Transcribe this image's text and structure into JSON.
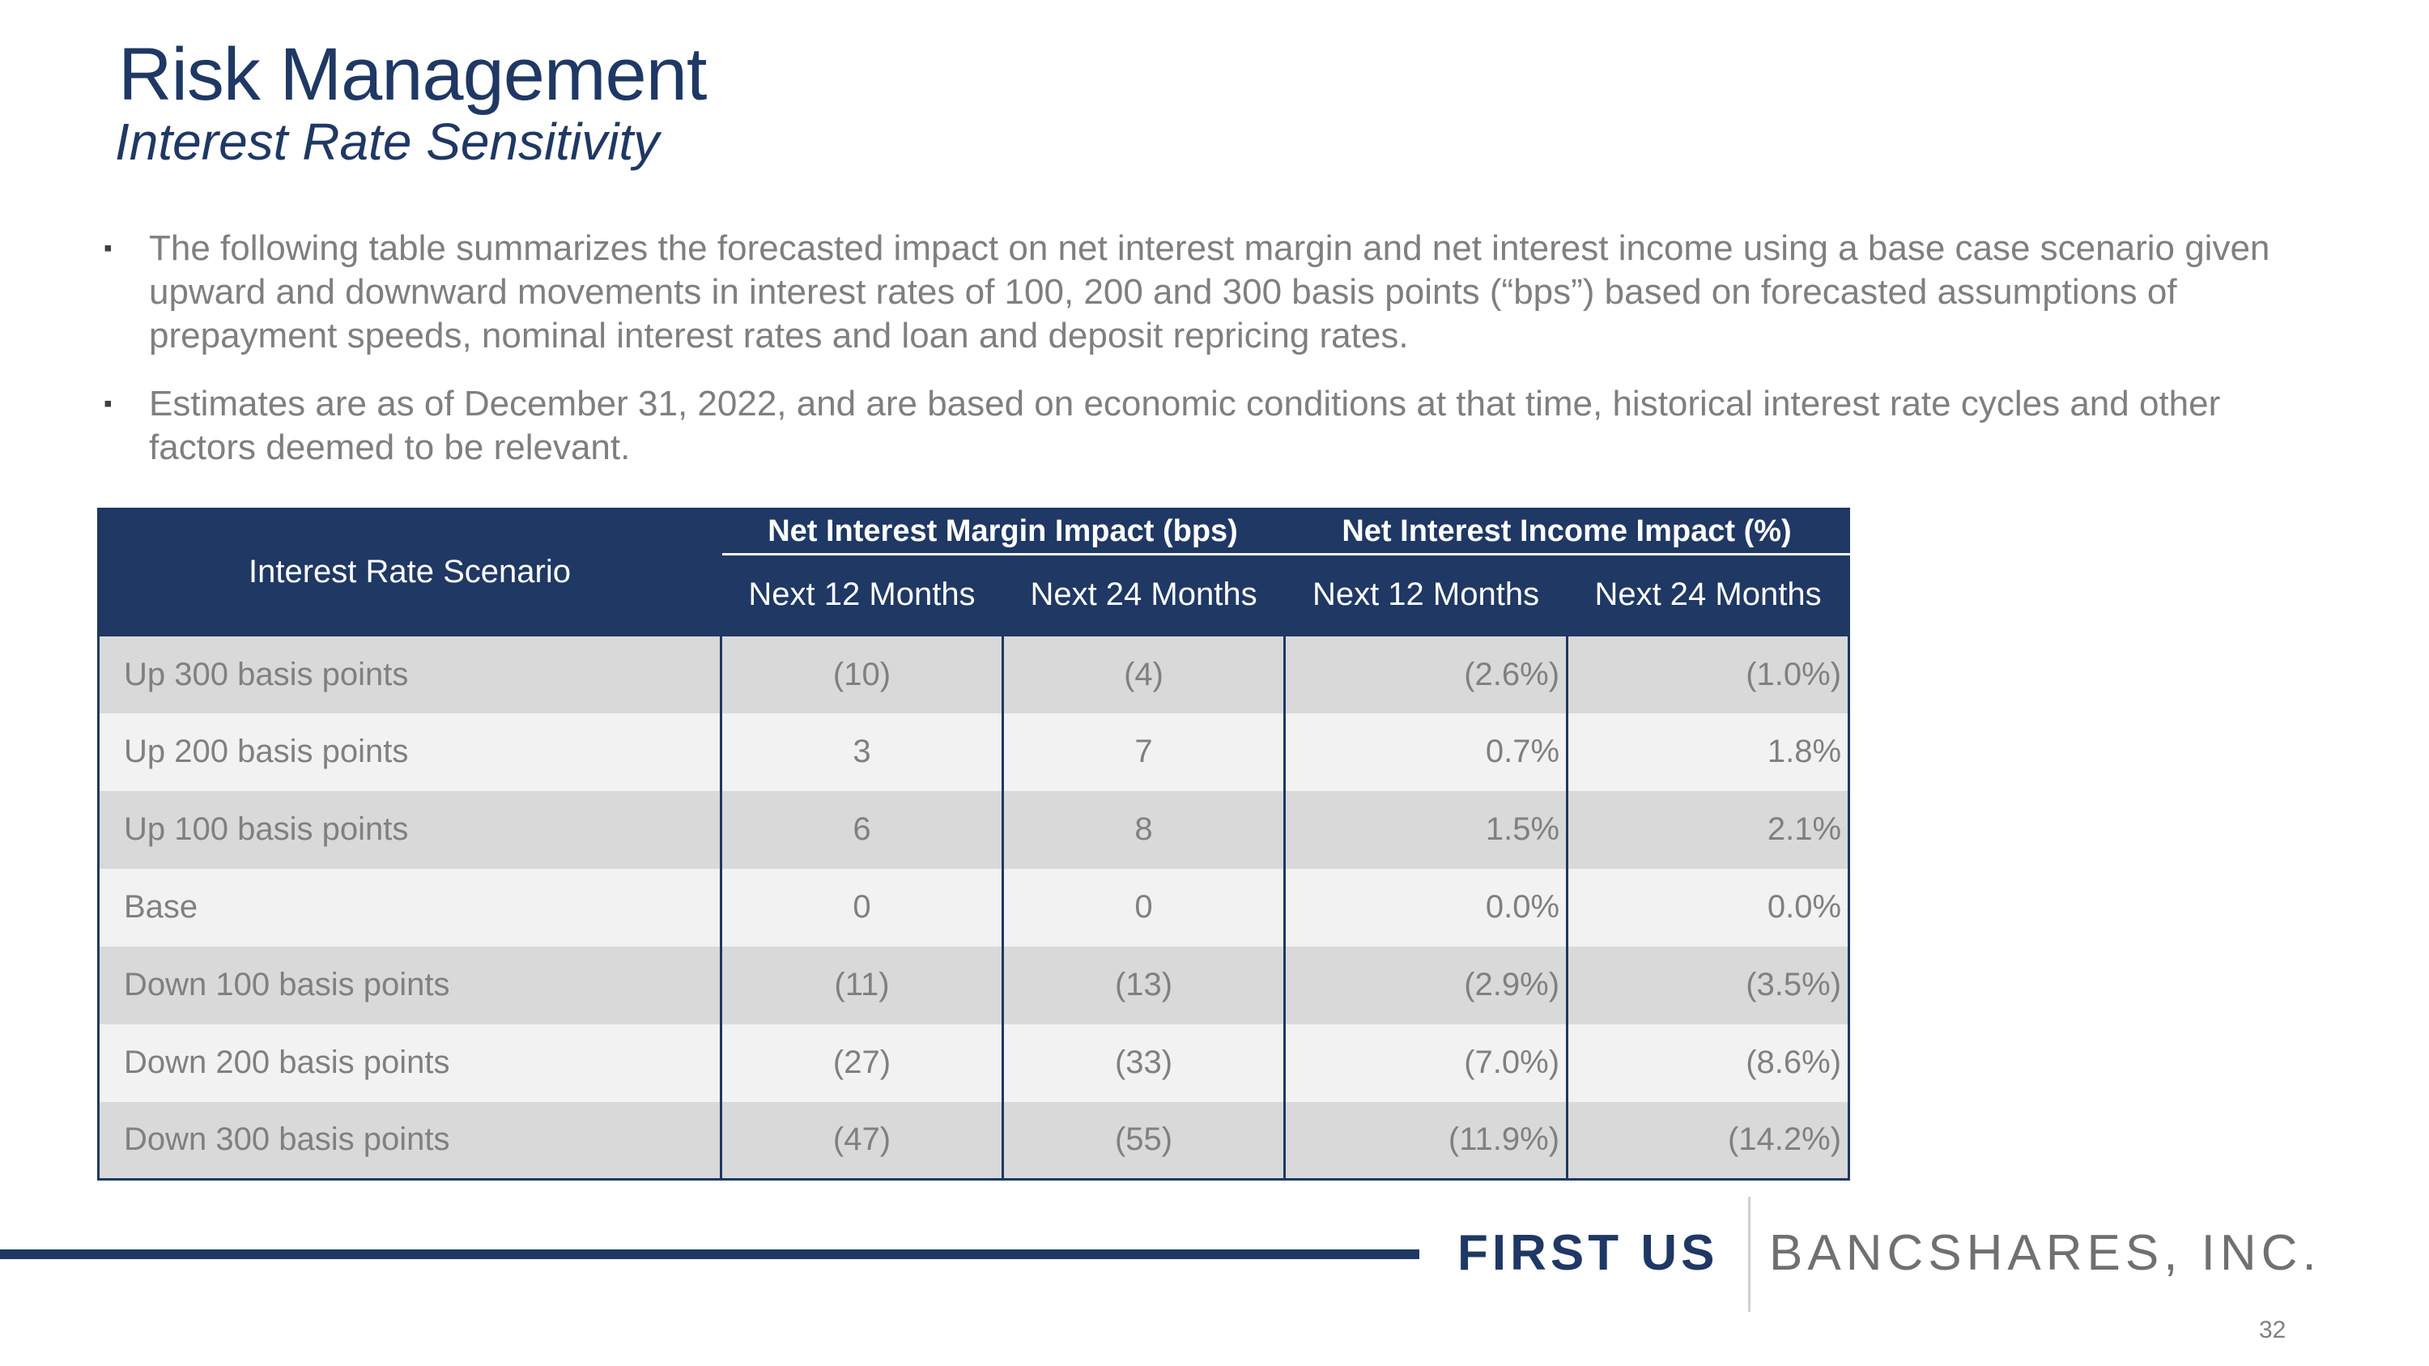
{
  "title": "Risk Management",
  "subtitle": "Interest Rate Sensitivity",
  "bullets": [
    "The following table summarizes the forecasted impact on net interest margin and net interest income using a base case scenario given upward and downward movements in interest rates of 100, 200 and 300 basis points (“bps”) based on forecasted assumptions of prepayment speeds, nominal interest rates and loan and deposit repricing rates.",
    "Estimates are as of December 31, 2022, and are based on economic conditions at that time, historical interest rate cycles and other factors deemed to be relevant."
  ],
  "bullet_mark": "▪",
  "table": {
    "scenario_header": "Interest Rate Scenario",
    "group_headers": [
      "Net Interest Margin Impact (bps)",
      "Net Interest Income Impact (%)"
    ],
    "sub_headers": [
      "Next 12 Months",
      "Next 24 Months",
      "Next 12 Months",
      "Next 24 Months"
    ],
    "rows": [
      [
        "Up 300 basis points",
        "(10)",
        "(4)",
        "(2.6%)",
        "(1.0%)"
      ],
      [
        "Up 200 basis points",
        "3",
        "7",
        "0.7%",
        "1.8%"
      ],
      [
        "Up 100 basis points",
        "6",
        "8",
        "1.5%",
        "2.1%"
      ],
      [
        "Base",
        "0",
        "0",
        "0.0%",
        "0.0%"
      ],
      [
        "Down 100 basis points",
        "(11)",
        "(13)",
        "(2.9%)",
        "(3.5%)"
      ],
      [
        "Down 200 basis points",
        "(27)",
        "(33)",
        "(7.0%)",
        "(8.6%)"
      ],
      [
        "Down 300 basis points",
        "(47)",
        "(55)",
        "(11.9%)",
        "(14.2%)"
      ]
    ]
  },
  "footer": {
    "logo_bold": "FIRST US",
    "logo_light": "BANCSHARES, INC.",
    "page_number": "32"
  },
  "colors": {
    "navy": "#1f3864",
    "row_dark": "#d9d9d9",
    "row_light": "#f2f2f2",
    "text_gray": "#808080"
  }
}
